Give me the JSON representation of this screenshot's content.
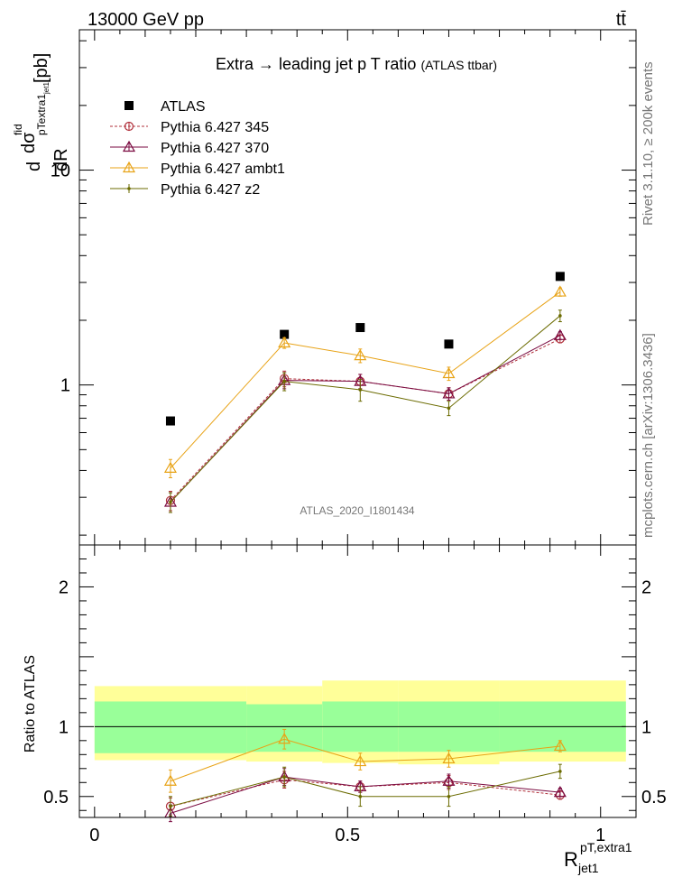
{
  "header": {
    "left": "13000 GeV pp",
    "right": "tt̄"
  },
  "side_labels": {
    "right_top": "Rivet 3.1.10, ≥ 200k events",
    "right_bottom": "mcplots.cern.ch [arXiv:1306.3436]"
  },
  "chart_data": [
    {
      "type": "line",
      "panel": "main",
      "title": "Extra → leading jet p T ratio",
      "subtitle": "(ATLAS ttbar)",
      "watermark": "ATLAS_2020_I1801434",
      "ylabel": "dσ/dR [pb]",
      "ylabel_parts": {
        "d_top": "d",
        "sigma": "dσ",
        "sigma_sup": "fid",
        "sigma_sub": "pTextra1",
        "sigma_subsub": "jet1",
        "pb": "[pb]",
        "dR": "dR"
      },
      "yscale": "log",
      "ylim": [
        0.18,
        45
      ],
      "xlim": [
        -0.03,
        1.07
      ],
      "yticks": [
        {
          "value": 1,
          "label": "1"
        },
        {
          "value": 10,
          "label": "10"
        }
      ],
      "legend_position": "top-left",
      "bins": [
        [
          0.0,
          0.3
        ],
        [
          0.3,
          0.45
        ],
        [
          0.45,
          0.6
        ],
        [
          0.6,
          0.8
        ],
        [
          0.8,
          1.05
        ]
      ],
      "x": [
        0.15,
        0.375,
        0.525,
        0.7,
        0.92
      ],
      "series": [
        {
          "name": "ATLAS",
          "color": "#000000",
          "marker": "square",
          "values": [
            0.68,
            1.72,
            1.85,
            1.55,
            3.2
          ],
          "errors": [
            0,
            0,
            0,
            0,
            0
          ]
        },
        {
          "name": "Pythia 6.427 345",
          "color": "#b0303b",
          "marker": "circle",
          "dashed": true,
          "values": [
            0.29,
            1.07,
            1.04,
            0.91,
            1.64
          ],
          "errors": [
            0.03,
            0.09,
            0.08,
            0.06,
            0.07
          ]
        },
        {
          "name": "Pythia 6.427 370",
          "color": "#7a0a40",
          "marker": "triangle",
          "values": [
            0.285,
            1.05,
            1.04,
            0.91,
            1.7
          ],
          "errors": [
            0.03,
            0.09,
            0.08,
            0.06,
            0.07
          ]
        },
        {
          "name": "Pythia 6.427 ambt1",
          "color": "#e8a317",
          "marker": "triangle",
          "values": [
            0.41,
            1.57,
            1.37,
            1.13,
            2.71
          ],
          "errors": [
            0.04,
            0.09,
            0.1,
            0.08,
            0.12
          ]
        },
        {
          "name": "Pythia 6.427 z2",
          "color": "#6b6b00",
          "marker": "dot",
          "values": [
            0.285,
            1.04,
            0.95,
            0.78,
            2.1
          ],
          "errors": [
            0.03,
            0.1,
            0.11,
            0.06,
            0.13
          ]
        }
      ]
    },
    {
      "type": "line",
      "panel": "ratio",
      "ylabel": "Ratio to ATLAS",
      "ylim": [
        0.35,
        2.3
      ],
      "xlim": [
        -0.03,
        1.07
      ],
      "yticks": [
        {
          "value": 0.5,
          "label": "0.5"
        },
        {
          "value": 1,
          "label": "1"
        },
        {
          "value": 2,
          "label": "2"
        }
      ],
      "xticks": [
        {
          "value": 0,
          "label": "0"
        },
        {
          "value": 0.5,
          "label": "0.5"
        },
        {
          "value": 1,
          "label": "1"
        }
      ],
      "xlabel_parts": {
        "main": "R",
        "sup": "pT,extra1",
        "sub": "jet1"
      },
      "bins": [
        [
          0.0,
          0.3
        ],
        [
          0.3,
          0.45
        ],
        [
          0.45,
          0.6
        ],
        [
          0.6,
          0.8
        ],
        [
          0.8,
          1.05
        ]
      ],
      "x": [
        0.15,
        0.375,
        0.525,
        0.7,
        0.92
      ],
      "bands": {
        "inner": [
          [
            0.81,
            1.18
          ],
          [
            0.82,
            1.16
          ],
          [
            0.82,
            1.18
          ],
          [
            0.82,
            1.18
          ],
          [
            0.82,
            1.18
          ]
        ],
        "outer": [
          [
            0.76,
            1.29
          ],
          [
            0.75,
            1.29
          ],
          [
            0.74,
            1.33
          ],
          [
            0.73,
            1.33
          ],
          [
            0.75,
            1.33
          ]
        ]
      },
      "series": [
        {
          "name": "Pythia 6.427 345",
          "color": "#b0303b",
          "marker": "circle",
          "dashed": true,
          "values": [
            0.43,
            0.62,
            0.57,
            0.6,
            0.51
          ],
          "errors": [
            0.06,
            0.06,
            0.04,
            0.05,
            0.03
          ]
        },
        {
          "name": "Pythia 6.427 370",
          "color": "#7a0a40",
          "marker": "triangle",
          "values": [
            0.38,
            0.64,
            0.57,
            0.61,
            0.53
          ],
          "errors": [
            0.06,
            0.06,
            0.04,
            0.05,
            0.03
          ]
        },
        {
          "name": "Pythia 6.427 ambt1",
          "color": "#e8a317",
          "marker": "triangle",
          "values": [
            0.61,
            0.91,
            0.75,
            0.77,
            0.86
          ],
          "errors": [
            0.08,
            0.07,
            0.06,
            0.06,
            0.04
          ]
        },
        {
          "name": "Pythia 6.427 z2",
          "color": "#6b6b00",
          "marker": "dot",
          "values": [
            0.43,
            0.64,
            0.5,
            0.5,
            0.68
          ],
          "errors": [
            0.07,
            0.07,
            0.07,
            0.07,
            0.05
          ]
        }
      ]
    }
  ]
}
